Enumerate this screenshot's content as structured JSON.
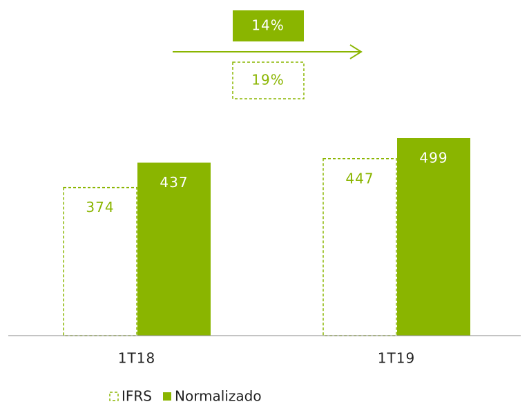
{
  "chart_data": {
    "type": "bar",
    "categories": [
      "1T18",
      "1T19"
    ],
    "series": [
      {
        "name": "IFRS",
        "color": "#8ab500",
        "style": "dashed",
        "values": [
          374,
          447
        ]
      },
      {
        "name": "Normalizado",
        "color": "#8ab500",
        "style": "solid",
        "values": [
          437,
          499
        ]
      }
    ],
    "annotations": [
      {
        "text": "14%",
        "style": "solid"
      },
      {
        "text": "19%",
        "style": "dashed"
      }
    ]
  }
}
